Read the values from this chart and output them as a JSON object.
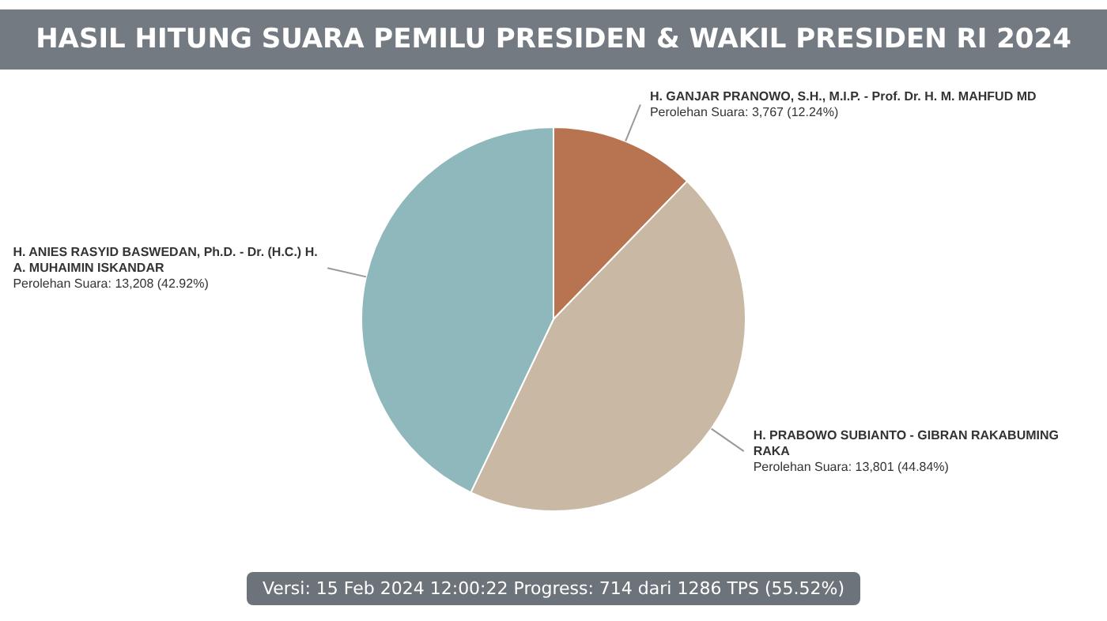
{
  "chart_data": {
    "type": "pie",
    "title": "HASIL HITUNG SUARA PEMILU PRESIDEN & WAKIL PRESIDEN RI 2024",
    "categories": [
      "H. GANJAR PRANOWO, S.H., M.I.P. - Prof. Dr. H. M. MAHFUD MD",
      "H. PRABOWO SUBIANTO - GIBRAN RAKABUMING RAKA",
      "H. ANIES RASYID BASWEDAN, Ph.D. - Dr. (H.C.) H. A. MUHAIMIN ISKANDAR"
    ],
    "values": [
      3767,
      13801,
      13208
    ],
    "colors": [
      "#b87350",
      "#c9b9a4",
      "#8fb8bd"
    ],
    "value_labels": [
      "Perolehan Suara: 3,767 (12.24%)",
      "Perolehan Suara: 13,801 (44.84%)",
      "Perolehan Suara: 13,208 (42.92%)"
    ],
    "legend": false,
    "annotations": [
      "Versi: 15 Feb 2024 12:00:22 Progress: 714 dari 1286 TPS (55.52%)"
    ]
  }
}
